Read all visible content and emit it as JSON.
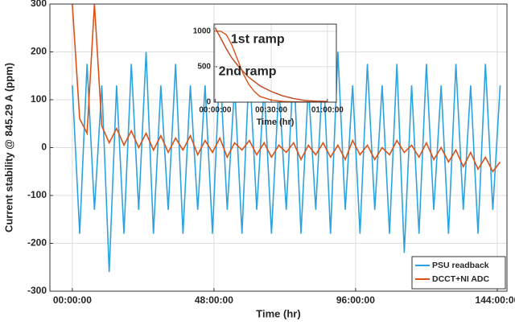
{
  "chart_data": [
    {
      "type": "line",
      "xlabel": "Time (hr)",
      "ylabel": "Current stability @ 845.29 A (ppm)",
      "x": [
        0,
        2.5,
        5,
        7.5,
        10,
        12.5,
        15,
        17.5,
        20,
        22.5,
        25,
        27.5,
        30,
        32.5,
        35,
        37.5,
        40,
        42.5,
        45,
        47.5,
        50,
        52.5,
        55,
        57.5,
        60,
        62.5,
        65,
        67.5,
        70,
        72.5,
        75,
        77.5,
        80,
        82.5,
        85,
        87.5,
        90,
        92.5,
        95,
        97.5,
        100,
        102.5,
        105,
        107.5,
        110,
        112.5,
        115,
        117.5,
        120,
        122.5,
        125,
        127.5,
        130,
        132.5,
        135,
        137.5,
        140,
        142.5,
        145
      ],
      "series": [
        {
          "name": "PSU readback",
          "color": "#2ba3e0",
          "values": [
            130,
            -180,
            175,
            -130,
            130,
            -260,
            130,
            -180,
            175,
            -130,
            200,
            -180,
            130,
            -130,
            175,
            -180,
            130,
            -130,
            130,
            -180,
            175,
            -130,
            130,
            -180,
            175,
            -130,
            130,
            -180,
            130,
            -130,
            175,
            -180,
            130,
            -130,
            175,
            -180,
            200,
            -130,
            130,
            -180,
            175,
            -130,
            130,
            -180,
            175,
            -220,
            130,
            -180,
            175,
            -130,
            130,
            -180,
            175,
            -130,
            130,
            -180,
            175,
            -130,
            130
          ]
        },
        {
          "name": "DCCT+NI ADC",
          "color": "#d95319",
          "values": [
            300,
            60,
            30,
            300,
            45,
            10,
            40,
            5,
            35,
            0,
            30,
            -5,
            25,
            -10,
            20,
            -5,
            25,
            -15,
            15,
            -10,
            20,
            -20,
            10,
            -5,
            15,
            -15,
            10,
            -20,
            5,
            -10,
            10,
            -25,
            5,
            -15,
            10,
            -20,
            5,
            -25,
            15,
            -15,
            5,
            -25,
            0,
            -15,
            15,
            -10,
            5,
            -20,
            10,
            -25,
            0,
            -30,
            -5,
            -40,
            -10,
            -45,
            -20,
            -50,
            -30
          ]
        }
      ],
      "xlim": [
        -7.6,
        147.3
      ],
      "xticks": [
        {
          "value": 0,
          "label": "00:00:00"
        },
        {
          "value": 48,
          "label": "48:00:00"
        },
        {
          "value": 96,
          "label": "96:00:00"
        },
        {
          "value": 144,
          "label": "144:00:00"
        }
      ],
      "ylim": [
        -300,
        300
      ],
      "yticks": [
        -300,
        -200,
        -100,
        0,
        100,
        200,
        300
      ],
      "grid": true,
      "legend": "lower right"
    },
    {
      "type": "line",
      "xlabel": "Time (hr)",
      "x": [
        0,
        0.05,
        0.1,
        0.15,
        0.2,
        0.25,
        0.3,
        0.35,
        0.4,
        0.5,
        0.6,
        0.7,
        0.8,
        0.9,
        1.0
      ],
      "series": [
        {
          "color": "#d95319",
          "values": [
            1000,
            1000,
            950,
            800,
            600,
            400,
            250,
            150,
            80,
            30,
            10,
            5,
            5,
            5,
            5
          ]
        },
        {
          "color": "#c0461a",
          "values": [
            1050,
            900,
            750,
            620,
            520,
            430,
            350,
            290,
            230,
            150,
            90,
            50,
            25,
            15,
            10
          ]
        }
      ],
      "annotations": [
        "1st ramp",
        "2nd ramp"
      ],
      "xlim": [
        -0.01,
        1.08
      ],
      "xticks": [
        {
          "value": 0,
          "label": "00:00:00"
        },
        {
          "value": 0.5,
          "label": "00:30:00"
        },
        {
          "value": 1,
          "label": "01:00:00"
        }
      ],
      "ylim": [
        0,
        1100
      ],
      "yticks": [
        0,
        500,
        1000
      ],
      "grid": true
    }
  ]
}
